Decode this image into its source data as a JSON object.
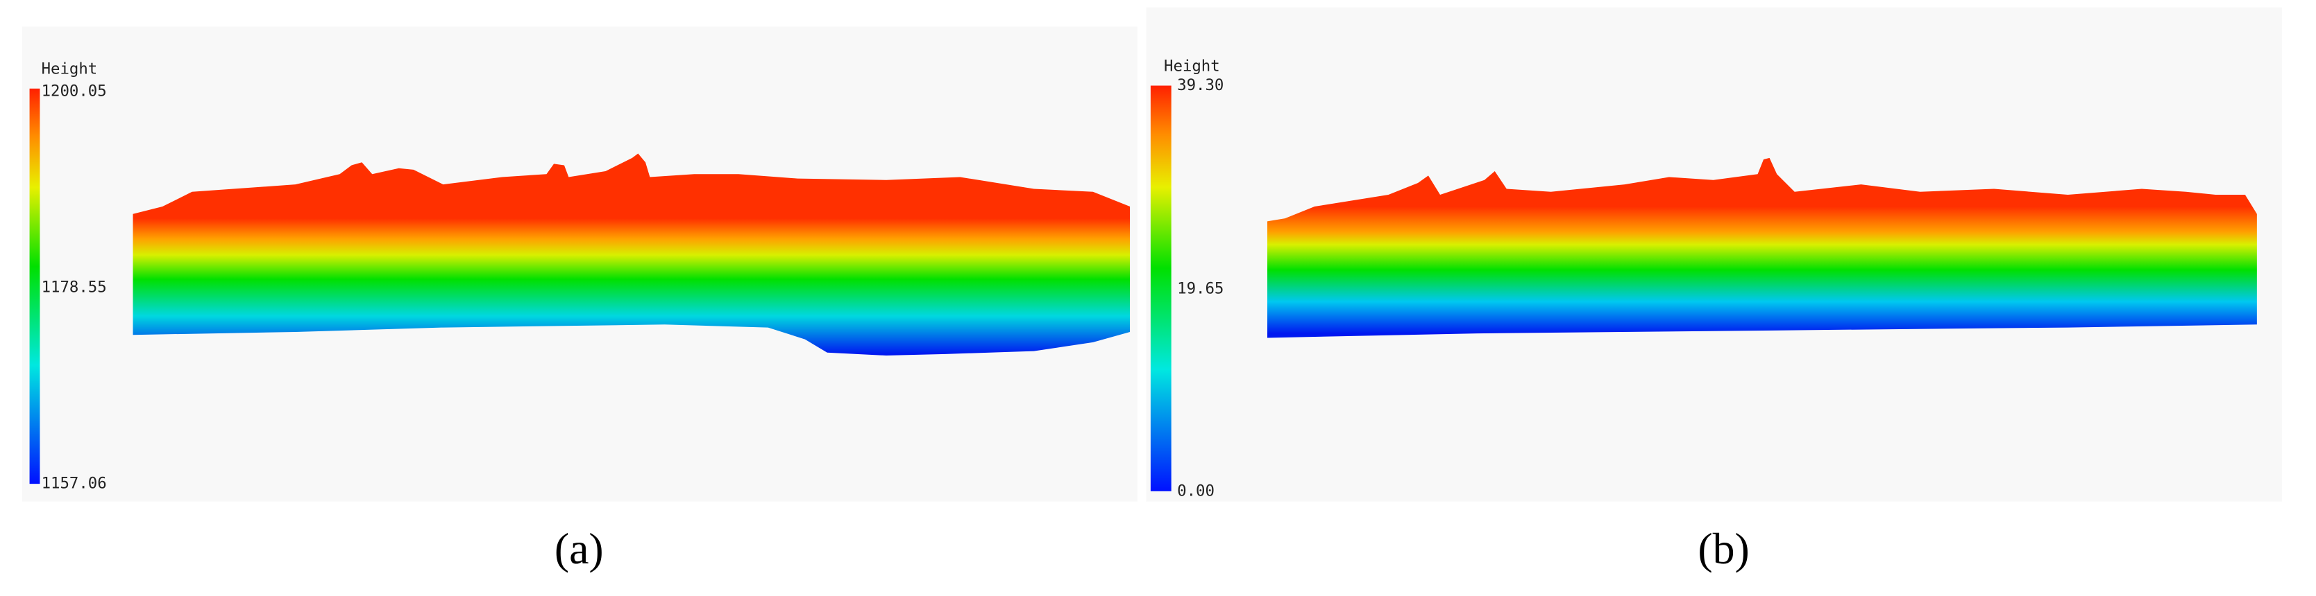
{
  "panels": [
    {
      "legend_title": "Height",
      "ticks": [
        "1200.05",
        "1178.55",
        "1157.06"
      ],
      "caption": "(a)"
    },
    {
      "legend_title": "Height",
      "ticks": [
        "39.30",
        "19.65",
        "0.00"
      ],
      "caption": "(b)"
    }
  ]
}
